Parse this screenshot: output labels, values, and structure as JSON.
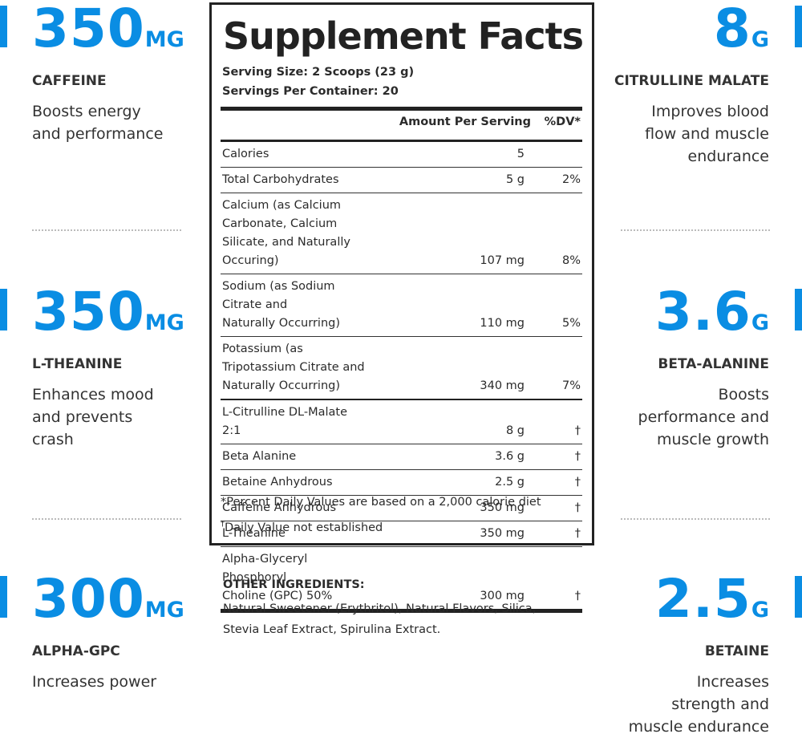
{
  "left_features": [
    {
      "amount": "350",
      "unit": "MG",
      "name": "CAFFEINE",
      "description": [
        "Boosts energy",
        "and performance"
      ]
    },
    {
      "amount": "350",
      "unit": "MG",
      "name": "L-THEANINE",
      "description": [
        "Enhances mood",
        "and prevents",
        "crash"
      ]
    },
    {
      "amount": "300",
      "unit": "MG",
      "name": "ALPHA-GPC",
      "description": [
        "Increases power"
      ]
    }
  ],
  "right_features": [
    {
      "amount": "8",
      "unit": "G",
      "name": "CITRULLINE MALATE",
      "description": [
        "Improves blood",
        "flow and muscle",
        "endurance"
      ]
    },
    {
      "amount": "3.6",
      "unit": "G",
      "name": "BETA-ALANINE",
      "description": [
        "Boosts",
        "performance and",
        "muscle growth"
      ]
    },
    {
      "amount": "2.5",
      "unit": "G",
      "name": "BETAINE",
      "description": [
        "Increases",
        "strength and",
        "muscle endurance"
      ]
    }
  ],
  "facts": {
    "title": "Supplement Facts",
    "serving_size": "Serving Size: 2 Scoops (23 g)",
    "servings_per_container": "Servings Per Container: 20",
    "header": {
      "amount": "Amount Per Serving",
      "dv": "%DV*"
    },
    "rows": [
      {
        "name": [
          "Calories"
        ],
        "amount": "5"
      },
      {
        "name": [
          "Total Carbohydrates"
        ],
        "amount": "5 g",
        "dv": "2%"
      },
      {
        "name": [
          "Calcium (as Calcium Carbonate, Calcium",
          "Silicate, and Naturally Occuring)"
        ],
        "amount": "107 mg",
        "dv": "8%"
      },
      {
        "name": [
          "Sodium (as Sodium Citrate and",
          "Naturally Occurring)"
        ],
        "amount": "110 mg",
        "dv": "5%"
      },
      {
        "name": [
          "Potassium (as Tripotassium Citrate and",
          "Naturally Occurring)"
        ],
        "amount": "340 mg",
        "dv": "7%"
      },
      {
        "name": [
          "L-Citrulline DL-Malate 2:1"
        ],
        "amount": "8 g",
        "dv": "†"
      },
      {
        "name": [
          "Beta Alanine"
        ],
        "amount": "3.6 g",
        "dv": "†"
      },
      {
        "name": [
          "Betaine Anhydrous"
        ],
        "amount": "2.5 g",
        "dv": "†"
      },
      {
        "name": [
          "Caffeine Anhydrous"
        ],
        "amount": "350 mg",
        "dv": "†"
      },
      {
        "name": [
          "L-Theanine"
        ],
        "amount": "350 mg",
        "dv": "†"
      },
      {
        "name": [
          "Alpha-Glyceryl Phosphoryl",
          "Choline (GPC) 50%"
        ],
        "amount": "300 mg",
        "dv": "†"
      }
    ],
    "footnotes": [
      {
        "text": "*Percent Daily Values are based on a 2,000 calorie diet"
      },
      {
        "marker": "†",
        "text": "Daily Value not established"
      }
    ]
  },
  "other_ingredients": {
    "heading": "OTHER INGREDIENTS:",
    "lines": [
      "Natural Sweetener (Erythritol), Natural Flavors, Silica,",
      "Stevia Leaf Extract, Spirulina Extract."
    ]
  }
}
